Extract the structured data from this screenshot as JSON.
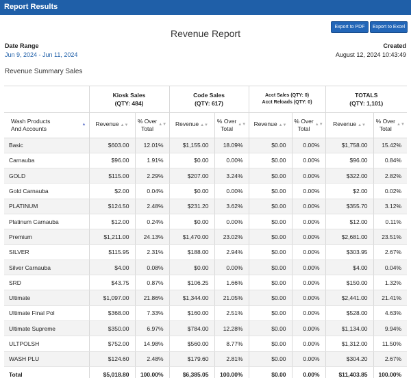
{
  "window": {
    "title": "Report Results"
  },
  "toolbar": {
    "export_pdf": "Export to PDF",
    "export_excel": "Export to Excel"
  },
  "report": {
    "title": "Revenue Report",
    "date_range_label": "Date Range",
    "date_range_value": "Jun 9, 2024 - Jun 11, 2024",
    "created_label": "Created",
    "created_value": "August 12, 2024 10:43:49",
    "summary_label": "Revenue Summary Sales"
  },
  "table": {
    "groups": {
      "kiosk": "Kiosk Sales",
      "kiosk_qty": "(QTY: 484)",
      "code": "Code Sales",
      "code_qty": "(QTY: 617)",
      "acct_sales": "Acct Sales (QTY: 0)",
      "acct_reloads": "Acct Reloads (QTY: 0)",
      "totals": "TOTALS",
      "totals_qty": "(QTY: 1,101)"
    },
    "first_col_line1": "Wash Products",
    "first_col_line2": "And Accounts",
    "col_revenue": "Revenue",
    "col_pct_line1": "% Over",
    "col_pct_line2": "Total",
    "rows": [
      [
        "Basic",
        "$603.00",
        "12.01%",
        "$1,155.00",
        "18.09%",
        "$0.00",
        "0.00%",
        "$1,758.00",
        "15.42%"
      ],
      [
        "Carnauba",
        "$96.00",
        "1.91%",
        "$0.00",
        "0.00%",
        "$0.00",
        "0.00%",
        "$96.00",
        "0.84%"
      ],
      [
        "GOLD",
        "$115.00",
        "2.29%",
        "$207.00",
        "3.24%",
        "$0.00",
        "0.00%",
        "$322.00",
        "2.82%"
      ],
      [
        "Gold Carnauba",
        "$2.00",
        "0.04%",
        "$0.00",
        "0.00%",
        "$0.00",
        "0.00%",
        "$2.00",
        "0.02%"
      ],
      [
        "PLATINUM",
        "$124.50",
        "2.48%",
        "$231.20",
        "3.62%",
        "$0.00",
        "0.00%",
        "$355.70",
        "3.12%"
      ],
      [
        "Platinum Carnauba",
        "$12.00",
        "0.24%",
        "$0.00",
        "0.00%",
        "$0.00",
        "0.00%",
        "$12.00",
        "0.11%"
      ],
      [
        "Premium",
        "$1,211.00",
        "24.13%",
        "$1,470.00",
        "23.02%",
        "$0.00",
        "0.00%",
        "$2,681.00",
        "23.51%"
      ],
      [
        "SILVER",
        "$115.95",
        "2.31%",
        "$188.00",
        "2.94%",
        "$0.00",
        "0.00%",
        "$303.95",
        "2.67%"
      ],
      [
        "Silver Carnauba",
        "$4.00",
        "0.08%",
        "$0.00",
        "0.00%",
        "$0.00",
        "0.00%",
        "$4.00",
        "0.04%"
      ],
      [
        "SRD",
        "$43.75",
        "0.87%",
        "$106.25",
        "1.66%",
        "$0.00",
        "0.00%",
        "$150.00",
        "1.32%"
      ],
      [
        "Ultimate",
        "$1,097.00",
        "21.86%",
        "$1,344.00",
        "21.05%",
        "$0.00",
        "0.00%",
        "$2,441.00",
        "21.41%"
      ],
      [
        "Ultimate Final Pol",
        "$368.00",
        "7.33%",
        "$160.00",
        "2.51%",
        "$0.00",
        "0.00%",
        "$528.00",
        "4.63%"
      ],
      [
        "Ultimate Supreme",
        "$350.00",
        "6.97%",
        "$784.00",
        "12.28%",
        "$0.00",
        "0.00%",
        "$1,134.00",
        "9.94%"
      ],
      [
        "ULTPOLSH",
        "$752.00",
        "14.98%",
        "$560.00",
        "8.77%",
        "$0.00",
        "0.00%",
        "$1,312.00",
        "11.50%"
      ],
      [
        "WASH PLU",
        "$124.60",
        "2.48%",
        "$179.60",
        "2.81%",
        "$0.00",
        "0.00%",
        "$304.20",
        "2.67%"
      ]
    ],
    "total_row": [
      "Total",
      "$5,018.80",
      "100.00%",
      "$6,385.05",
      "100.00%",
      "$0.00",
      "0.00%",
      "$11,403.85",
      "100.00%"
    ]
  }
}
